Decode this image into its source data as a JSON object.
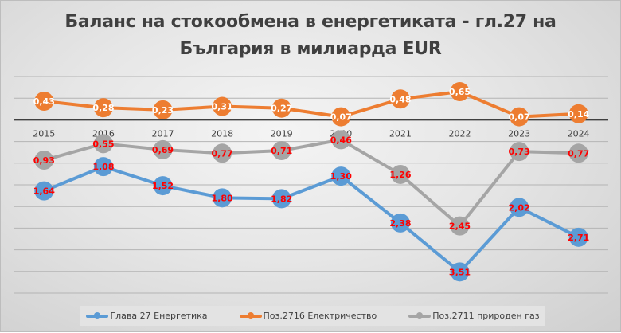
{
  "chart_data": {
    "type": "line",
    "title_lines": [
      "Баланс на стокообмена в енергетиката - гл.27 на",
      "България в милиарда EUR"
    ],
    "xlabel": "",
    "ylabel": "",
    "categories": [
      "2015",
      "2016",
      "2017",
      "2018",
      "2019",
      "2020",
      "2021",
      "2022",
      "2023",
      "2024"
    ],
    "ylim": [
      -4,
      1
    ],
    "grid_step": 0.5,
    "grid": true,
    "legend_position": "bottom",
    "series": [
      {
        "name": "Глава 27 Енергетика",
        "color": "#5b9bd5",
        "label_color": "#ff0000",
        "values": [
          -1.64,
          -1.08,
          -1.52,
          -1.8,
          -1.82,
          -1.3,
          -2.38,
          -3.51,
          -2.02,
          -2.71
        ],
        "labels": [
          "1,64",
          "1,08",
          "1,52",
          "1,80",
          "1,82",
          "1,30",
          "2,38",
          "3,51",
          "2,02",
          "2,71"
        ]
      },
      {
        "name": "Поз.2716 Електричество",
        "color": "#ed7d31",
        "label_color": "#ffffff",
        "values": [
          0.43,
          0.28,
          0.23,
          0.31,
          0.27,
          0.07,
          0.48,
          0.65,
          0.07,
          0.14
        ],
        "labels": [
          "0,43",
          "0,28",
          "0,23",
          "0,31",
          "0,27",
          "0,07",
          "0,48",
          "0,65",
          "0,07",
          "0,14"
        ]
      },
      {
        "name": "Поз.2711 природен газ",
        "color": "#a5a5a5",
        "label_color": "#ff0000",
        "values": [
          -0.93,
          -0.55,
          -0.69,
          -0.77,
          -0.71,
          -0.46,
          -1.26,
          -2.45,
          -0.73,
          -0.77
        ],
        "labels": [
          "0,93",
          "0,55",
          "0,69",
          "0,77",
          "0,71",
          "0,46",
          "1,26",
          "2,45",
          "0,73",
          "0,77"
        ]
      }
    ]
  }
}
